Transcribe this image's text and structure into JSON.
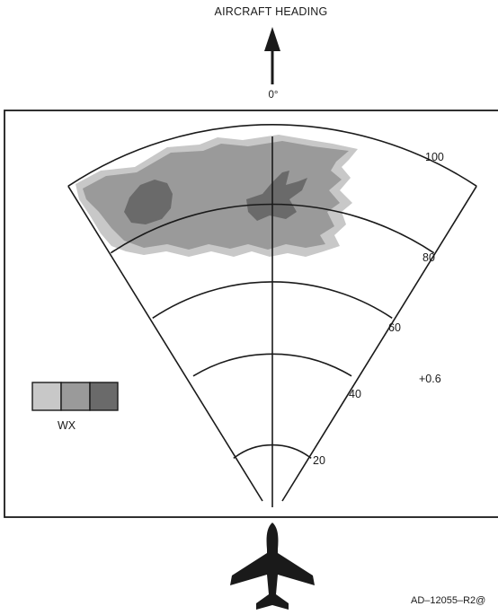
{
  "header": {
    "title": "AIRCRAFT HEADING",
    "heading_degrees": "0°"
  },
  "range_rings": [
    {
      "value": "20"
    },
    {
      "value": "40"
    },
    {
      "value": "60"
    },
    {
      "value": "80"
    },
    {
      "value": "100"
    }
  ],
  "tilt_readout": "+0.6",
  "legend": {
    "label": "WX",
    "swatches": [
      {
        "level": "light",
        "color": "#c8c8c8"
      },
      {
        "level": "medium",
        "color": "#9a9a9a"
      },
      {
        "level": "heavy",
        "color": "#6a6a6a"
      }
    ]
  },
  "colors": {
    "weather_light": "#c8c8c8",
    "weather_medium": "#9a9a9a",
    "weather_heavy": "#6a6a6a",
    "lines": "#1a1a1a"
  },
  "icons": {
    "heading_arrow": "arrow-up-icon",
    "aircraft": "airplane-icon"
  },
  "figure_code": "AD–12055–R2@"
}
